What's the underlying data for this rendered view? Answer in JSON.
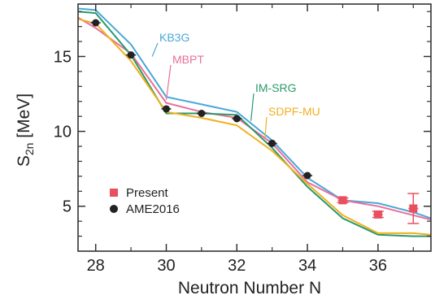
{
  "chart_data": {
    "type": "line",
    "xlabel": "Neutron Number N",
    "ylabel": "S2n [MeV]",
    "ylabel_main": "S",
    "ylabel_sub": "2n",
    "ylabel_unit": " [MeV]",
    "xlim": [
      27.5,
      37.5
    ],
    "ylim": [
      2.0,
      18.5
    ],
    "x_ticks": [
      28,
      30,
      32,
      34,
      36
    ],
    "y_ticks": [
      5,
      10,
      15
    ],
    "grid": false,
    "legend_position": "bottom-left",
    "series": [
      {
        "name": "KB3G",
        "color": "#4aa8d8",
        "x": [
          27.5,
          28,
          29,
          30,
          31,
          32,
          33,
          34,
          35,
          36,
          37,
          37.5
        ],
        "y": [
          18.2,
          18.1,
          15.8,
          12.3,
          11.8,
          11.3,
          9.4,
          6.9,
          5.4,
          5.2,
          4.6,
          4.2
        ]
      },
      {
        "name": "MBPT",
        "color": "#e8709a",
        "x": [
          27.5,
          28,
          29,
          30,
          31,
          32,
          33,
          34,
          35,
          36,
          37,
          37.5
        ],
        "y": [
          17.6,
          16.9,
          15.2,
          11.9,
          11.3,
          10.9,
          9.2,
          6.6,
          5.4,
          5.0,
          4.4,
          4.1
        ]
      },
      {
        "name": "IM-SRG",
        "color": "#2a9a6a",
        "x": [
          27.5,
          28,
          29,
          30,
          31,
          32,
          33,
          34,
          35,
          36,
          37,
          37.5
        ],
        "y": [
          18.0,
          17.9,
          15.1,
          11.2,
          11.2,
          11.1,
          8.9,
          6.3,
          4.2,
          3.1,
          3.0,
          3.0
        ]
      },
      {
        "name": "SDPF-MU",
        "color": "#f0b020",
        "x": [
          27.5,
          28,
          29,
          30,
          31,
          32,
          33,
          34,
          35,
          36,
          37,
          37.5
        ],
        "y": [
          17.5,
          17.2,
          14.7,
          11.3,
          10.9,
          10.4,
          8.7,
          6.5,
          4.4,
          3.2,
          3.2,
          3.1
        ]
      }
    ],
    "points": [
      {
        "name": "Present",
        "color": "#e8505e",
        "marker": "square",
        "x": [
          35,
          36,
          37
        ],
        "y": [
          5.4,
          4.45,
          4.85
        ],
        "yerr": [
          0.15,
          0.2,
          1.0
        ]
      },
      {
        "name": "AME2016",
        "color": "#222222",
        "marker": "circle",
        "x": [
          28,
          29,
          30,
          31,
          32,
          33,
          34
        ],
        "y": [
          17.25,
          15.1,
          11.5,
          11.2,
          10.85,
          9.2,
          7.05
        ],
        "yerr": [
          0.03,
          0.03,
          0.03,
          0.03,
          0.03,
          0.03,
          0.03
        ]
      }
    ]
  }
}
